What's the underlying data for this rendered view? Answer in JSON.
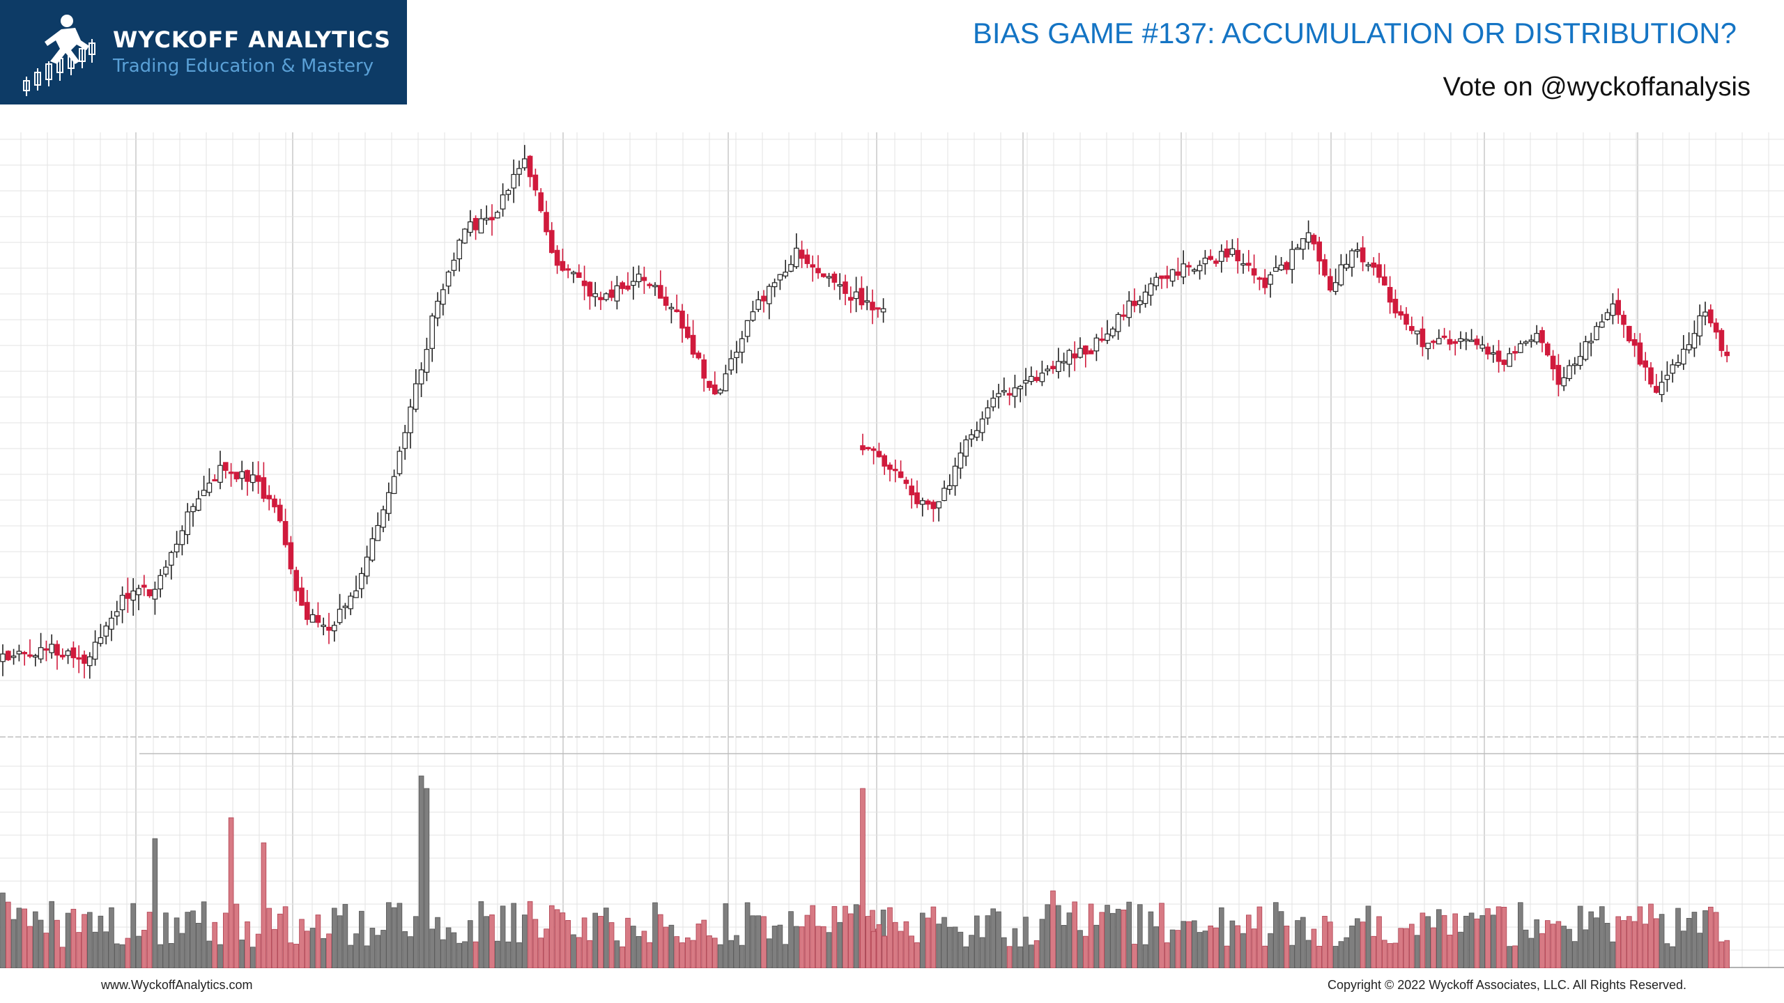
{
  "logo": {
    "title": "WYCKOFF ANALYTICS",
    "tagline": "Trading Education & Mastery",
    "icon": "runner-candlestick-icon"
  },
  "header": {
    "title": "BIAS GAME #137: ACCUMULATION OR DISTRIBUTION?",
    "subtitle": "Vote on @wyckoffanalysis"
  },
  "footer": {
    "website": "www.WyckoffAnalytics.com",
    "copyright": "Copyright © 2022 Wyckoff Associates, LLC. All Rights Reserved."
  },
  "colors": {
    "up": "#ffffff",
    "down": "#d01a3c",
    "up_volume": "#7f7f7f",
    "down_volume": "#d77a84",
    "grid": "#e3e3e3",
    "brand": "#0d3b66",
    "title": "#1474c4"
  },
  "chart_data": {
    "type": "candlestick",
    "title": "",
    "xlabel": "",
    "ylabel": "",
    "grid": true,
    "price_range": [
      0,
      100
    ],
    "volume_range": [
      0,
      100
    ],
    "note": "",
    "segments": [
      {
        "anchors": [
          [
            0,
            12
          ],
          [
            8,
            14
          ],
          [
            15,
            12
          ],
          [
            22,
            22
          ],
          [
            28,
            24
          ],
          [
            35,
            38
          ],
          [
            40,
            44
          ],
          [
            46,
            42
          ],
          [
            50,
            38
          ],
          [
            55,
            20
          ],
          [
            60,
            17
          ],
          [
            65,
            24
          ],
          [
            70,
            36
          ],
          [
            75,
            54
          ],
          [
            80,
            72
          ],
          [
            85,
            84
          ],
          [
            90,
            85
          ],
          [
            96,
            96
          ],
          [
            102,
            78
          ],
          [
            110,
            72
          ],
          [
            118,
            76
          ],
          [
            125,
            68
          ],
          [
            131,
            56
          ],
          [
            138,
            70
          ],
          [
            146,
            80
          ],
          [
            154,
            74
          ],
          [
            162,
            70
          ]
        ],
        "volatility": 2.2,
        "seed": 7
      },
      {
        "anchors": [
          [
            0,
            48
          ],
          [
            5,
            44
          ],
          [
            10,
            38
          ],
          [
            14,
            38
          ],
          [
            18,
            46
          ],
          [
            24,
            56
          ],
          [
            30,
            58
          ],
          [
            36,
            62
          ],
          [
            42,
            64
          ],
          [
            48,
            70
          ],
          [
            55,
            76
          ],
          [
            62,
            78
          ],
          [
            68,
            80
          ],
          [
            74,
            75
          ],
          [
            78,
            78
          ],
          [
            82,
            84
          ],
          [
            86,
            74
          ],
          [
            90,
            80
          ],
          [
            94,
            78
          ],
          [
            98,
            70
          ],
          [
            104,
            64
          ],
          [
            110,
            66
          ],
          [
            118,
            62
          ],
          [
            124,
            66
          ],
          [
            128,
            58
          ],
          [
            134,
            66
          ],
          [
            138,
            72
          ],
          [
            142,
            64
          ],
          [
            146,
            56
          ],
          [
            150,
            62
          ],
          [
            155,
            70
          ],
          [
            159,
            62
          ]
        ],
        "volatility": 2.0,
        "seed": 19
      }
    ],
    "volume_spikes": [
      [
        0,
        36
      ],
      [
        28,
        62
      ],
      [
        30,
        22
      ],
      [
        42,
        72
      ],
      [
        48,
        60
      ],
      [
        66,
        18
      ],
      [
        77,
        92
      ],
      [
        78,
        86
      ],
      [
        113,
        37
      ],
      [
        114,
        30
      ],
      [
        122,
        16
      ],
      [
        135,
        12
      ],
      [
        148,
        15
      ]
    ]
  }
}
